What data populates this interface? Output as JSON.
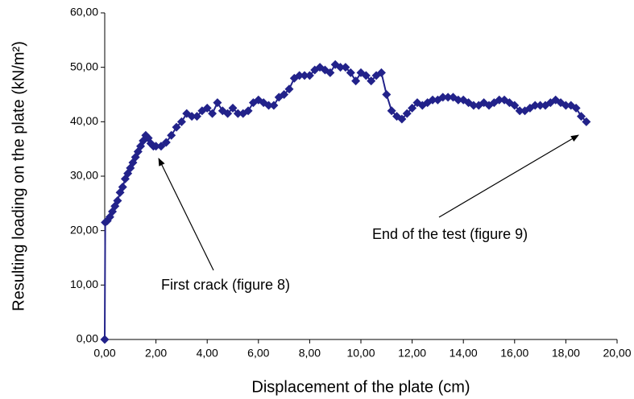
{
  "chart_data": {
    "type": "line",
    "xlabel": "Displacement of the plate (cm)",
    "ylabel": "Resulting loading on the plate (kN/m²)",
    "annotations": [
      "First crack (figure 8)",
      "End of the test (figure 9)"
    ],
    "x": [
      0,
      0.02,
      0.1,
      0.2,
      0.3,
      0.4,
      0.5,
      0.6,
      0.7,
      0.8,
      0.9,
      1.0,
      1.1,
      1.2,
      1.3,
      1.4,
      1.5,
      1.6,
      1.7,
      1.8,
      1.9,
      2.0,
      2.2,
      2.4,
      2.6,
      2.8,
      3.0,
      3.2,
      3.4,
      3.6,
      3.8,
      4.0,
      4.2,
      4.4,
      4.6,
      4.8,
      5.0,
      5.2,
      5.4,
      5.6,
      5.8,
      6.0,
      6.2,
      6.4,
      6.6,
      6.8,
      7.0,
      7.2,
      7.4,
      7.6,
      7.8,
      8.0,
      8.2,
      8.4,
      8.6,
      8.8,
      9.0,
      9.2,
      9.4,
      9.6,
      9.8,
      10.0,
      10.2,
      10.4,
      10.6,
      10.8,
      11.0,
      11.2,
      11.4,
      11.6,
      11.8,
      12.0,
      12.2,
      12.4,
      12.6,
      12.8,
      13.0,
      13.2,
      13.4,
      13.6,
      13.8,
      14.0,
      14.2,
      14.4,
      14.6,
      14.8,
      15.0,
      15.2,
      15.4,
      15.6,
      15.8,
      16.0,
      16.2,
      16.4,
      16.6,
      16.8,
      17.0,
      17.2,
      17.4,
      17.6,
      17.8,
      18.0,
      18.2,
      18.4,
      18.6,
      18.8
    ],
    "series": [
      {
        "color": "#22228a",
        "values": [
          0,
          21.5,
          21.8,
          22.5,
          23.5,
          24.5,
          25.5,
          27,
          28,
          29.5,
          30.5,
          31.5,
          32.5,
          33.5,
          34.5,
          35.5,
          36.5,
          37.5,
          37,
          36,
          35.5,
          35.5,
          35.5,
          36.2,
          37.5,
          39,
          40,
          41.5,
          41,
          41,
          42,
          42.5,
          41.5,
          43.5,
          42,
          41.5,
          42.5,
          41.5,
          41.5,
          42,
          43.5,
          44,
          43.5,
          43,
          43,
          44.5,
          45,
          46,
          48,
          48.5,
          48.5,
          48.5,
          49.5,
          50,
          49.5,
          49,
          50.5,
          50,
          50,
          49,
          47.5,
          49,
          48.5,
          47.5,
          48.5,
          49,
          45,
          42,
          41,
          40.5,
          41.5,
          42.5,
          43.5,
          43,
          43.5,
          44,
          44,
          44.5,
          44.5,
          44.5,
          44,
          44,
          43.5,
          43,
          43,
          43.5,
          43,
          43.5,
          44,
          44,
          43.5,
          43,
          42,
          42,
          42.5,
          43,
          43,
          43,
          43.5,
          44,
          43.5,
          43,
          43,
          42.5,
          41,
          40
        ]
      }
    ],
    "xlim": [
      0,
      20
    ],
    "xticks": [
      {
        "value": 0,
        "label": "0,00"
      },
      {
        "value": 2,
        "label": "2,00"
      },
      {
        "value": 4,
        "label": "4,00"
      },
      {
        "value": 6,
        "label": "6,00"
      },
      {
        "value": 8,
        "label": "8,00"
      },
      {
        "value": 10,
        "label": "10,00"
      },
      {
        "value": 12,
        "label": "12,00"
      },
      {
        "value": 14,
        "label": "14,00"
      },
      {
        "value": 16,
        "label": "16,00"
      },
      {
        "value": 18,
        "label": "18,00"
      },
      {
        "value": 20,
        "label": "20,00"
      }
    ],
    "ylim": [
      0,
      60
    ],
    "yticks": [
      {
        "value": 0,
        "label": "0,00"
      },
      {
        "value": 10,
        "label": "10,00"
      },
      {
        "value": 20,
        "label": "20,00"
      },
      {
        "value": 30,
        "label": "30,00"
      },
      {
        "value": 40,
        "label": "40,00"
      },
      {
        "value": 50,
        "label": "50,00"
      },
      {
        "value": 60,
        "label": "60,00"
      }
    ],
    "grid": false
  }
}
